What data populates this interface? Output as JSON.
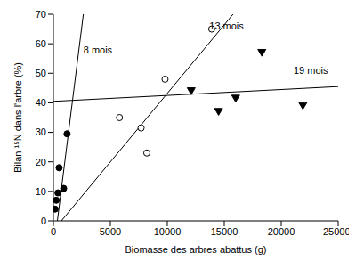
{
  "chart_data": {
    "type": "scatter",
    "x_label": "Biomasse des arbres abattus (g)",
    "y_label": "Bilan ¹⁵N dans l'arbre (%)",
    "xlim": [
      0,
      25000
    ],
    "xticks": [
      0,
      5000,
      10000,
      15000,
      20000,
      25000
    ],
    "ylim": [
      0,
      70
    ],
    "yticks": [
      0,
      10,
      20,
      30,
      40,
      50,
      60,
      70
    ],
    "grid": false,
    "series": [
      {
        "name": "8 mois",
        "color": "#000000",
        "marker": "circle",
        "x": [
          150,
          250,
          400,
          500,
          900,
          1200
        ],
        "values": [
          4,
          7,
          9.5,
          18,
          11,
          29.5
        ],
        "fit_x": [
          350,
          2630
        ],
        "fit_y": [
          0,
          70
        ]
      },
      {
        "name": "13 mois",
        "color": "#000000",
        "marker": "circle_open",
        "x": [
          5800,
          7700,
          8200,
          9800,
          13900
        ],
        "values": [
          35,
          31.5,
          23,
          48,
          65
        ],
        "fit_x": [
          700,
          15770
        ],
        "fit_y": [
          0,
          70
        ]
      },
      {
        "name": "19 mois",
        "color": "#000000",
        "marker": "triangle_down",
        "x": [
          12100,
          14500,
          16000,
          18300,
          21900
        ],
        "values": [
          44,
          37,
          41.5,
          57,
          39
        ],
        "fit_x": [
          0,
          25000
        ],
        "fit_y": [
          40.5,
          45.5
        ]
      }
    ],
    "annotations": [
      {
        "text": "8 mois",
        "x": 3900,
        "y": 58
      },
      {
        "text": "13 mois",
        "x": 15200,
        "y": 66
      },
      {
        "text": "19 mois",
        "x": 22600,
        "y": 51
      }
    ]
  }
}
